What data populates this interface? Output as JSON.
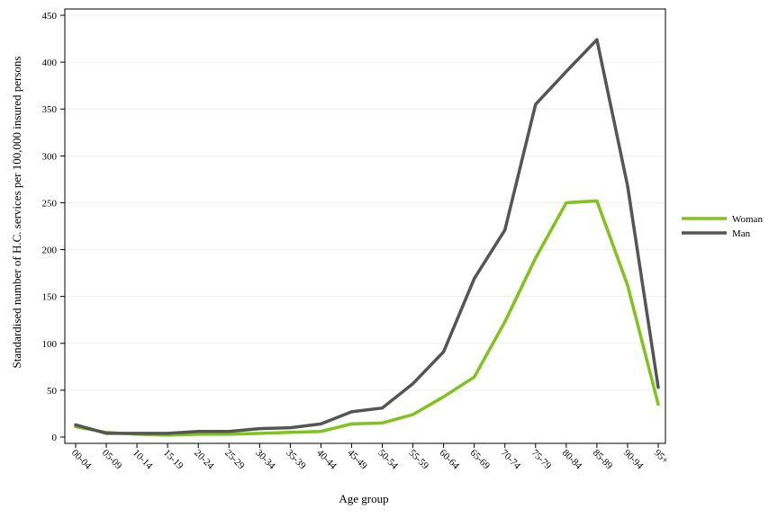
{
  "chart_data": {
    "type": "line",
    "xlabel": "Age group",
    "ylabel": "Standardised number of H.C. services per 100,000 insured persons",
    "categories": [
      "00-04",
      "05-09",
      "10-14",
      "15-19",
      "20-24",
      "25-29",
      "30-34",
      "35-39",
      "40-44",
      "45-49",
      "50-54",
      "55-59",
      "60-64",
      "65-69",
      "70-74",
      "75-79",
      "80-84",
      "85-89",
      "90-94",
      "95+"
    ],
    "ylim": [
      0,
      450
    ],
    "yticks": [
      0,
      50,
      100,
      150,
      200,
      250,
      300,
      350,
      400,
      450
    ],
    "grid": true,
    "legend_position": "right",
    "series": [
      {
        "name": "Woman",
        "color": "#7fc31c",
        "values": [
          11,
          5,
          3,
          2,
          3,
          3,
          4,
          5,
          6,
          14,
          15,
          24,
          43,
          64,
          123,
          191,
          250,
          252,
          162,
          35
        ]
      },
      {
        "name": "Man",
        "color": "#555555",
        "values": [
          13,
          4,
          4,
          4,
          6,
          6,
          9,
          10,
          14,
          27,
          31,
          57,
          91,
          169,
          221,
          355,
          390,
          424,
          268,
          53
        ]
      }
    ]
  }
}
